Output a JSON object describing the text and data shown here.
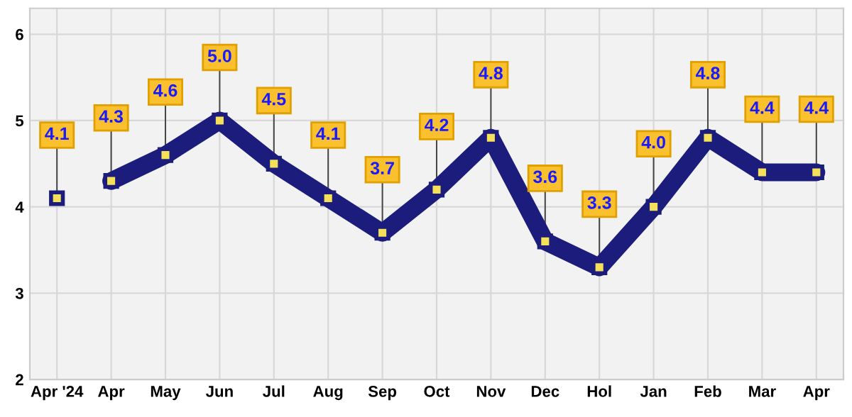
{
  "chart_data": {
    "type": "line",
    "categories": [
      "Apr '24",
      "Apr",
      "May",
      "Jun",
      "Jul",
      "Aug",
      "Sep",
      "Oct",
      "Nov",
      "Dec",
      "Hol",
      "Jan",
      "Feb",
      "Mar",
      "Apr"
    ],
    "series": [
      {
        "color": "#1c1c7c",
        "values": [
          4.1,
          null,
          null,
          null,
          null,
          null,
          null,
          null,
          null,
          null,
          null,
          null,
          null,
          null,
          null
        ],
        "value_labels": [
          "4.1",
          null,
          null,
          null,
          null,
          null,
          null,
          null,
          null,
          null,
          null,
          null,
          null,
          null,
          null
        ]
      },
      {
        "color": "#1c1c7c",
        "values": [
          null,
          4.3,
          4.6,
          5.0,
          4.5,
          4.1,
          3.7,
          4.2,
          4.8,
          3.6,
          3.3,
          4.0,
          4.8,
          4.4,
          4.4
        ],
        "value_labels": [
          null,
          "4.3",
          "4.6",
          "5.0",
          "4.5",
          "4.1",
          "3.7",
          "4.2",
          "4.8",
          "3.6",
          "3.3",
          "4.0",
          "4.8",
          "4.4",
          "4.4"
        ]
      }
    ],
    "ylim": [
      2,
      6.3
    ],
    "yticks": [
      2,
      3,
      4,
      5,
      6
    ],
    "grid": true,
    "marker": "square",
    "line_style": "solid"
  }
}
